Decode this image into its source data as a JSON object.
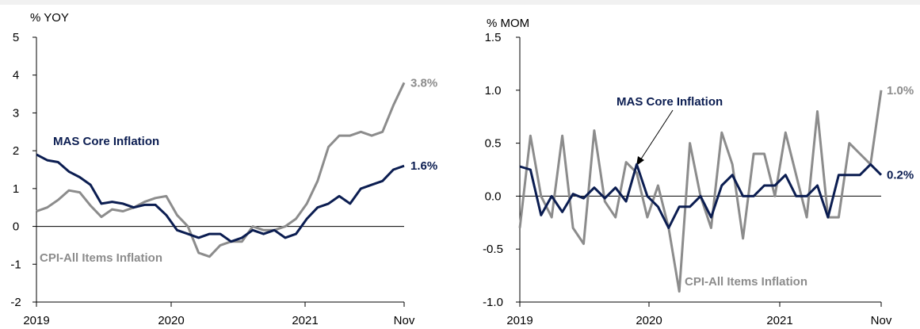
{
  "colors": {
    "core": "#0b1d51",
    "cpi": "#8c8c8c",
    "axis": "#000000"
  },
  "chart_data": [
    {
      "type": "line",
      "unit_label": "% YOY",
      "ylim": [
        -2,
        5
      ],
      "yticks": [
        "5",
        "4",
        "3",
        "2",
        "1",
        "0",
        "-1",
        "-2"
      ],
      "xticks": [
        "2019",
        "2020",
        "2021",
        "Nov"
      ],
      "x": [
        "2019-01",
        "2019-02",
        "2019-03",
        "2019-04",
        "2019-05",
        "2019-06",
        "2019-07",
        "2019-08",
        "2019-09",
        "2019-10",
        "2019-11",
        "2019-12",
        "2020-01",
        "2020-02",
        "2020-03",
        "2020-04",
        "2020-05",
        "2020-06",
        "2020-07",
        "2020-08",
        "2020-09",
        "2020-10",
        "2020-11",
        "2020-12",
        "2021-01",
        "2021-02",
        "2021-03",
        "2021-04",
        "2021-05",
        "2021-06",
        "2021-07",
        "2021-08",
        "2021-09",
        "2021-10",
        "2021-11"
      ],
      "series": [
        {
          "name": "MAS Core Inflation",
          "color": "core",
          "end_label": "1.6%",
          "values": [
            1.9,
            1.75,
            1.7,
            1.45,
            1.3,
            1.1,
            0.6,
            0.65,
            0.6,
            0.5,
            0.57,
            0.57,
            0.3,
            -0.1,
            -0.2,
            -0.3,
            -0.2,
            -0.2,
            -0.4,
            -0.3,
            -0.1,
            -0.2,
            -0.1,
            -0.3,
            -0.2,
            0.2,
            0.5,
            0.6,
            0.8,
            0.6,
            1.0,
            1.1,
            1.2,
            1.5,
            1.6
          ]
        },
        {
          "name": "CPI-All Items Inflation",
          "color": "cpi",
          "end_label": "3.8%",
          "values": [
            0.4,
            0.5,
            0.7,
            0.95,
            0.9,
            0.55,
            0.25,
            0.45,
            0.4,
            0.5,
            0.65,
            0.75,
            0.8,
            0.3,
            0.0,
            -0.7,
            -0.8,
            -0.5,
            -0.4,
            -0.4,
            0.0,
            -0.1,
            -0.1,
            0.0,
            0.2,
            0.6,
            1.2,
            2.1,
            2.4,
            2.4,
            2.5,
            2.4,
            2.5,
            3.2,
            3.8
          ]
        }
      ]
    },
    {
      "type": "line",
      "unit_label": "% MOM",
      "ylim": [
        -1.0,
        1.5
      ],
      "yticks": [
        "1.5",
        "1.0",
        "0.5",
        "0.0",
        "-0.5",
        "-1.0"
      ],
      "xticks": [
        "2019",
        "2020",
        "2021",
        "Nov"
      ],
      "x": [
        "2019-01",
        "2019-02",
        "2019-03",
        "2019-04",
        "2019-05",
        "2019-06",
        "2019-07",
        "2019-08",
        "2019-09",
        "2019-10",
        "2019-11",
        "2019-12",
        "2020-01",
        "2020-02",
        "2020-03",
        "2020-04",
        "2020-05",
        "2020-06",
        "2020-07",
        "2020-08",
        "2020-09",
        "2020-10",
        "2020-11",
        "2020-12",
        "2021-01",
        "2021-02",
        "2021-03",
        "2021-04",
        "2021-05",
        "2021-06",
        "2021-07",
        "2021-08",
        "2021-09",
        "2021-10",
        "2021-11"
      ],
      "series": [
        {
          "name": "MAS Core Inflation",
          "color": "core",
          "end_label": "0.2%",
          "values": [
            0.28,
            0.25,
            -0.18,
            0.0,
            -0.15,
            0.02,
            -0.02,
            0.08,
            -0.02,
            0.08,
            -0.05,
            0.3,
            0.0,
            -0.1,
            -0.3,
            -0.1,
            -0.1,
            0.0,
            -0.2,
            0.1,
            0.2,
            0.0,
            0.0,
            0.1,
            0.1,
            0.2,
            0.0,
            0.0,
            0.1,
            -0.2,
            0.2,
            0.2,
            0.2,
            0.3,
            0.2
          ]
        },
        {
          "name": "CPI-All Items Inflation",
          "color": "cpi",
          "end_label": "1.0%",
          "values": [
            -0.3,
            0.57,
            0.0,
            -0.2,
            0.57,
            -0.3,
            -0.45,
            0.62,
            -0.05,
            -0.2,
            0.32,
            0.22,
            -0.2,
            0.1,
            -0.3,
            -0.9,
            0.5,
            0.0,
            -0.3,
            0.6,
            0.3,
            -0.4,
            0.4,
            0.4,
            0.0,
            0.6,
            0.2,
            -0.2,
            0.8,
            -0.2,
            -0.2,
            0.5,
            0.4,
            0.3,
            1.0
          ]
        }
      ]
    }
  ],
  "annotations": {
    "left_core": "MAS Core Inflation",
    "left_cpi": "CPI-All Items Inflation",
    "right_core": "MAS Core Inflation",
    "right_cpi": "CPI-All Items Inflation"
  }
}
